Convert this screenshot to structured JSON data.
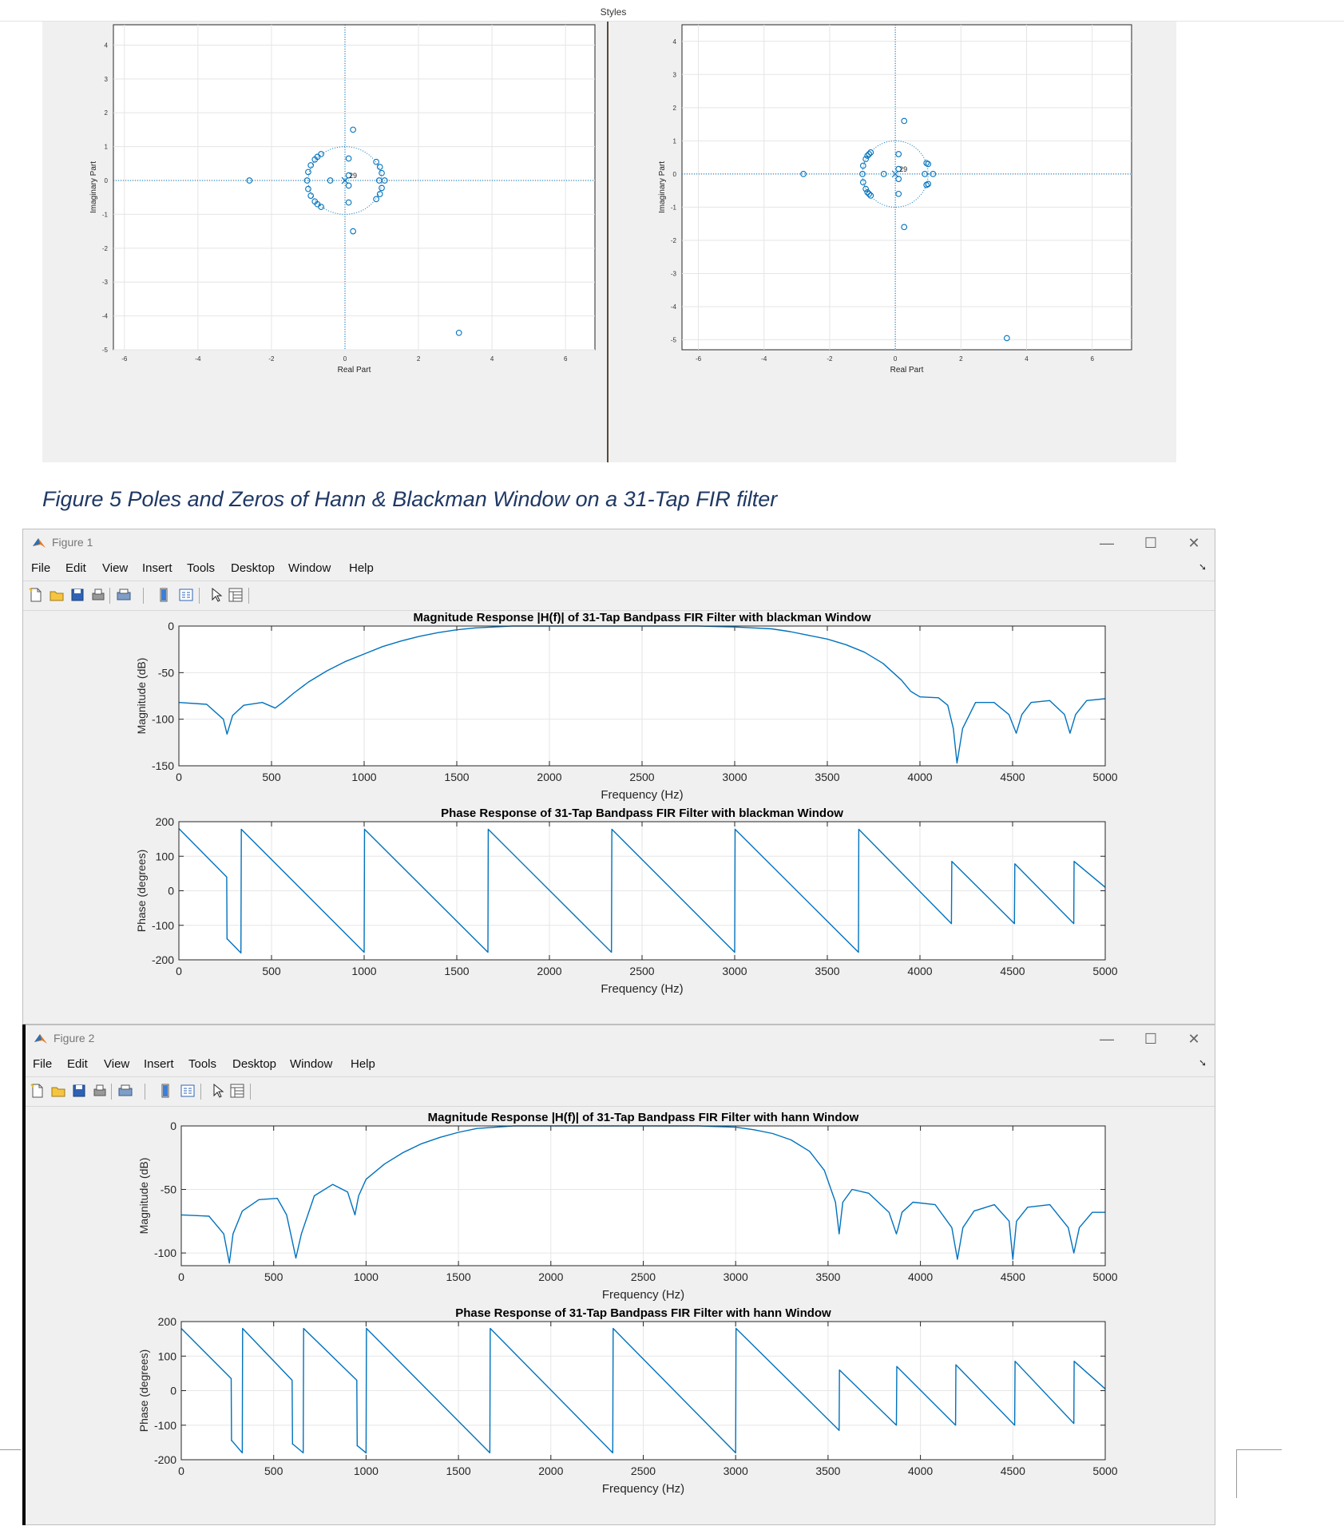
{
  "document": {
    "styles_label": "Styles",
    "caption": "Figure 5 Poles and Zeros of Hann & Blackman Window on a 31-Tap FIR filter"
  },
  "pole_zero_plots": [
    {
      "xlabel": "Real Part",
      "ylabel": "Imaginary Part",
      "x_ticks": [
        "-6",
        "-4",
        "-2",
        "0",
        "2",
        "4",
        "6"
      ],
      "y_ticks": [
        "4",
        "3",
        "2",
        "1",
        "0",
        "-1",
        "-2",
        "-3",
        "-4",
        "-5"
      ],
      "pole_label": "29",
      "zeros": [
        [
          -2.6,
          0
        ],
        [
          3.1,
          -4.5
        ],
        [
          0.22,
          1.5
        ],
        [
          0.22,
          -1.5
        ],
        [
          -0.4,
          0
        ],
        [
          0.1,
          0.65
        ],
        [
          0.1,
          -0.65
        ],
        [
          0.1,
          0.15
        ],
        [
          0.1,
          -0.15
        ],
        [
          0.85,
          0.55
        ],
        [
          0.85,
          -0.55
        ],
        [
          0.95,
          0.4
        ],
        [
          0.95,
          -0.4
        ],
        [
          1.0,
          0.22
        ],
        [
          1.0,
          -0.22
        ],
        [
          0.93,
          0
        ],
        [
          1.08,
          0
        ],
        [
          -0.65,
          0.78
        ],
        [
          -0.65,
          -0.78
        ],
        [
          -0.82,
          0.62
        ],
        [
          -0.82,
          -0.62
        ],
        [
          -0.93,
          0.45
        ],
        [
          -0.93,
          -0.45
        ],
        [
          -1.0,
          0.25
        ],
        [
          -1.0,
          -0.25
        ],
        [
          -1.03,
          0
        ],
        [
          -0.75,
          0.7
        ],
        [
          -0.75,
          -0.7
        ]
      ]
    },
    {
      "xlabel": "Real Part",
      "ylabel": "Imaginary Part",
      "x_ticks": [
        "-6",
        "-4",
        "-2",
        "0",
        "2",
        "4",
        "6"
      ],
      "y_ticks": [
        "4",
        "3",
        "2",
        "1",
        "0",
        "-1",
        "-2",
        "-3",
        "-4",
        "-5"
      ],
      "pole_label": "29",
      "zeros": [
        [
          -2.8,
          0
        ],
        [
          3.4,
          -4.95
        ],
        [
          0.27,
          1.6
        ],
        [
          0.27,
          -1.6
        ],
        [
          -0.35,
          0
        ],
        [
          0.1,
          0.6
        ],
        [
          0.1,
          -0.6
        ],
        [
          0.1,
          0.15
        ],
        [
          0.1,
          -0.15
        ],
        [
          0.95,
          0.33
        ],
        [
          0.95,
          -0.33
        ],
        [
          1.0,
          0.3
        ],
        [
          1.0,
          -0.3
        ],
        [
          0.9,
          0
        ],
        [
          1.15,
          0
        ],
        [
          -0.8,
          0.6
        ],
        [
          -0.8,
          -0.6
        ],
        [
          -0.9,
          0.45
        ],
        [
          -0.9,
          -0.45
        ],
        [
          -0.98,
          0.25
        ],
        [
          -0.98,
          -0.25
        ],
        [
          -1.0,
          0
        ],
        [
          -0.75,
          0.65
        ],
        [
          -0.75,
          -0.65
        ],
        [
          -0.85,
          0.55
        ],
        [
          -0.85,
          -0.55
        ]
      ]
    }
  ],
  "figures": [
    {
      "window_title": "Figure 1",
      "menu": [
        "File",
        "Edit",
        "View",
        "Insert",
        "Tools",
        "Desktop",
        "Window",
        "Help"
      ],
      "toolbar_icons": [
        "new-file-icon",
        "open-folder-icon",
        "save-icon",
        "print-icon",
        "print-preview-icon",
        "colorbar-icon",
        "legend-icon",
        "pointer-icon",
        "property-inspector-icon"
      ],
      "window_controls": {
        "minimize": "—",
        "maximize": "☐",
        "close": "✕"
      },
      "chart_data": [
        {
          "type": "line",
          "title": "Magnitude Response |H(f)| of 31-Tap Bandpass FIR Filter with blackman Window",
          "xlabel": "Frequency (Hz)",
          "ylabel": "Magnitude (dB)",
          "xlim": [
            0,
            5000
          ],
          "ylim": [
            -150,
            0
          ],
          "x_ticks": [
            "0",
            "500",
            "1000",
            "1500",
            "2000",
            "2500",
            "3000",
            "3500",
            "4000",
            "4500",
            "5000"
          ],
          "y_ticks": [
            "0",
            "-50",
            "-100",
            "-150"
          ],
          "grid": true,
          "x": [
            0,
            150,
            240,
            260,
            290,
            350,
            450,
            520,
            560,
            620,
            700,
            800,
            900,
            1000,
            1100,
            1200,
            1300,
            1400,
            1500,
            1600,
            1700,
            1800,
            1900,
            2000,
            2200,
            2500,
            2800,
            3000,
            3100,
            3200,
            3300,
            3400,
            3500,
            3600,
            3700,
            3800,
            3900,
            3950,
            4000,
            4100,
            4150,
            4180,
            4200,
            4230,
            4300,
            4400,
            4480,
            4520,
            4550,
            4600,
            4700,
            4780,
            4810,
            4840,
            4900,
            5000
          ],
          "y": [
            -82,
            -84,
            -100,
            -116,
            -96,
            -85,
            -82,
            -88,
            -82,
            -72,
            -60,
            -48,
            -38,
            -30,
            -22,
            -16,
            -11,
            -7,
            -4,
            -2,
            -1,
            0,
            0,
            0,
            0,
            0,
            0,
            -1,
            -2,
            -3,
            -6,
            -10,
            -14,
            -20,
            -28,
            -40,
            -58,
            -70,
            -76,
            -77,
            -85,
            -110,
            -147,
            -110,
            -82,
            -82,
            -95,
            -115,
            -95,
            -82,
            -80,
            -95,
            -115,
            -95,
            -80,
            -78
          ]
        },
        {
          "type": "line",
          "title": "Phase Response of 31-Tap Bandpass FIR Filter with blackman Window",
          "xlabel": "Frequency (Hz)",
          "ylabel": "Phase (degrees)",
          "xlim": [
            0,
            5000
          ],
          "ylim": [
            -200,
            200
          ],
          "x_ticks": [
            "0",
            "500",
            "1000",
            "1500",
            "2000",
            "2500",
            "3000",
            "3500",
            "4000",
            "4500",
            "5000"
          ],
          "y_ticks": [
            "200",
            "100",
            "0",
            "-100",
            "-200"
          ],
          "grid": true,
          "x": [
            0,
            258,
            260,
            262,
            335,
            337,
            1000,
            1002,
            1668,
            1670,
            2335,
            2337,
            3000,
            3002,
            3668,
            3670,
            4170,
            4172,
            4510,
            4512,
            4830,
            4832,
            5000
          ],
          "y": [
            180,
            40,
            -140,
            -140,
            -180,
            178,
            -178,
            178,
            -178,
            178,
            -178,
            178,
            -178,
            178,
            -178,
            178,
            -95,
            85,
            -95,
            78,
            -95,
            85,
            10
          ]
        }
      ]
    },
    {
      "window_title": "Figure 2",
      "menu": [
        "File",
        "Edit",
        "View",
        "Insert",
        "Tools",
        "Desktop",
        "Window",
        "Help"
      ],
      "toolbar_icons": [
        "new-file-icon",
        "open-folder-icon",
        "save-icon",
        "print-icon",
        "print-preview-icon",
        "colorbar-icon",
        "legend-icon",
        "pointer-icon",
        "property-inspector-icon"
      ],
      "window_controls": {
        "minimize": "—",
        "maximize": "☐",
        "close": "✕"
      },
      "chart_data": [
        {
          "type": "line",
          "title": "Magnitude Response |H(f)| of 31-Tap Bandpass FIR Filter with hann Window",
          "xlabel": "Frequency (Hz)",
          "ylabel": "Magnitude (dB)",
          "xlim": [
            0,
            5000
          ],
          "ylim": [
            -110,
            0
          ],
          "x_ticks": [
            "0",
            "500",
            "1000",
            "1500",
            "2000",
            "2500",
            "3000",
            "3500",
            "4000",
            "4500",
            "5000"
          ],
          "y_ticks": [
            "0",
            "-50",
            "-100"
          ],
          "grid": true,
          "x": [
            0,
            150,
            230,
            260,
            280,
            330,
            420,
            520,
            570,
            600,
            620,
            650,
            720,
            820,
            900,
            940,
            960,
            1000,
            1100,
            1200,
            1300,
            1400,
            1500,
            1600,
            1700,
            1800,
            1900,
            2000,
            2200,
            2500,
            2800,
            3000,
            3100,
            3200,
            3300,
            3400,
            3480,
            3540,
            3560,
            3580,
            3630,
            3720,
            3830,
            3870,
            3880,
            3900,
            3960,
            4080,
            4170,
            4200,
            4230,
            4290,
            4400,
            4480,
            4500,
            4520,
            4580,
            4700,
            4800,
            4830,
            4860,
            4930,
            5000
          ],
          "y": [
            -70,
            -71,
            -85,
            -108,
            -85,
            -67,
            -58,
            -57,
            -70,
            -90,
            -104,
            -85,
            -55,
            -46,
            -52,
            -70,
            -55,
            -42,
            -30,
            -21,
            -14,
            -9,
            -5,
            -2,
            -1,
            0,
            0,
            0,
            0,
            0,
            0,
            -1,
            -3,
            -6,
            -11,
            -20,
            -35,
            -60,
            -85,
            -60,
            -50,
            -53,
            -68,
            -85,
            -80,
            -68,
            -60,
            -62,
            -80,
            -105,
            -80,
            -67,
            -62,
            -75,
            -105,
            -75,
            -64,
            -62,
            -80,
            -100,
            -80,
            -68,
            -68
          ]
        },
        {
          "type": "line",
          "title": "Phase Response of 31-Tap Bandpass FIR Filter with hann Window",
          "xlabel": "Frequency (Hz)",
          "ylabel": "Phase (degrees)",
          "xlim": [
            0,
            5000
          ],
          "ylim": [
            -200,
            200
          ],
          "x_ticks": [
            "0",
            "500",
            "1000",
            "1500",
            "2000",
            "2500",
            "3000",
            "3500",
            "4000",
            "4500",
            "5000"
          ],
          "y_ticks": [
            "200",
            "100",
            "0",
            "-100",
            "-200"
          ],
          "grid": true,
          "x": [
            0,
            270,
            272,
            274,
            330,
            332,
            600,
            602,
            604,
            660,
            662,
            950,
            952,
            954,
            1000,
            1002,
            1670,
            1672,
            2335,
            2337,
            3000,
            3002,
            3560,
            3562,
            3870,
            3872,
            4190,
            4192,
            4510,
            4512,
            4830,
            4832,
            5000
          ],
          "y": [
            180,
            35,
            -145,
            -145,
            -180,
            180,
            30,
            -155,
            -155,
            -180,
            180,
            30,
            -160,
            -160,
            -180,
            180,
            -180,
            180,
            -180,
            180,
            -180,
            180,
            -115,
            60,
            -100,
            70,
            -100,
            75,
            -100,
            85,
            -95,
            85,
            5
          ]
        }
      ]
    }
  ]
}
